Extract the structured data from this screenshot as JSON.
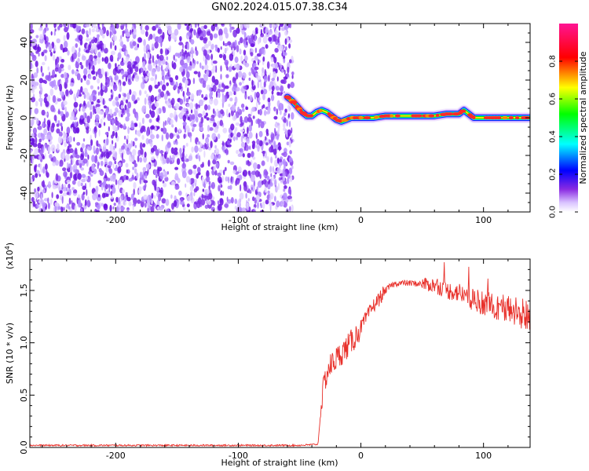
{
  "title": "GN02.2024.015.07.38.C34",
  "chart_data": [
    {
      "type": "heatmap",
      "xlabel": "Height of straight line (km)",
      "ylabel": "Frequency (Hz)",
      "xlim": [
        -270,
        138
      ],
      "ylim": [
        -50,
        50
      ],
      "x_ticks": [
        -200,
        -100,
        0,
        100
      ],
      "y_ticks": [
        -40,
        -20,
        0,
        20,
        40
      ],
      "noise_region_x": [
        -270,
        -58
      ],
      "ridge": {
        "x": [
          -60,
          -56,
          -52,
          -48,
          -44,
          -40,
          -36,
          -32,
          -28,
          -24,
          -20,
          -16,
          -12,
          -8,
          -4,
          0,
          10,
          20,
          30,
          40,
          50,
          60,
          70,
          80,
          84,
          88,
          92,
          100,
          110,
          120,
          130,
          138
        ],
        "y": [
          11,
          9,
          6,
          3,
          1,
          1,
          3,
          4,
          3,
          1,
          -1,
          -2,
          -1,
          0,
          0,
          0,
          0,
          1,
          1,
          1,
          1,
          1,
          2,
          2,
          4,
          2,
          0,
          0,
          0,
          0,
          0,
          0
        ]
      },
      "colorbar": {
        "label": "Normalized spectral amplitude",
        "range": [
          0,
          1
        ],
        "ticks": [
          0.0,
          0.2,
          0.4,
          0.6,
          0.8
        ],
        "colormap": "rainbow (white-purple-blue-cyan-green-yellow-red-magenta)"
      }
    },
    {
      "type": "line",
      "xlabel": "Height of straight line (km)",
      "ylabel": "SNR (10 * v/v)",
      "scale_note": "(x10^4)",
      "scale_base": "(x10",
      "scale_exp": "4",
      "scale_close": ")",
      "xlim": [
        -270,
        138
      ],
      "ylim": [
        0,
        1.8
      ],
      "x_ticks": [
        -200,
        -100,
        0,
        100
      ],
      "y_ticks": [
        0.0,
        0.5,
        1.0,
        1.5
      ],
      "color": "#e8302a",
      "series": [
        {
          "x": [
            -270,
            -200,
            -100,
            -50,
            -35,
            -32,
            -30,
            -28,
            -25,
            -20,
            -16,
            -12,
            -5,
            0,
            5,
            10,
            15,
            20,
            25,
            30,
            40,
            50,
            60,
            70,
            80,
            90,
            100,
            110,
            120,
            130,
            138
          ],
          "values": [
            0.02,
            0.02,
            0.02,
            0.02,
            0.03,
            0.45,
            0.6,
            0.7,
            0.78,
            0.85,
            0.9,
            0.95,
            1.05,
            1.15,
            1.25,
            1.35,
            1.42,
            1.5,
            1.55,
            1.57,
            1.57,
            1.56,
            1.55,
            1.5,
            1.48,
            1.42,
            1.38,
            1.35,
            1.32,
            1.28,
            1.25
          ]
        }
      ]
    }
  ]
}
